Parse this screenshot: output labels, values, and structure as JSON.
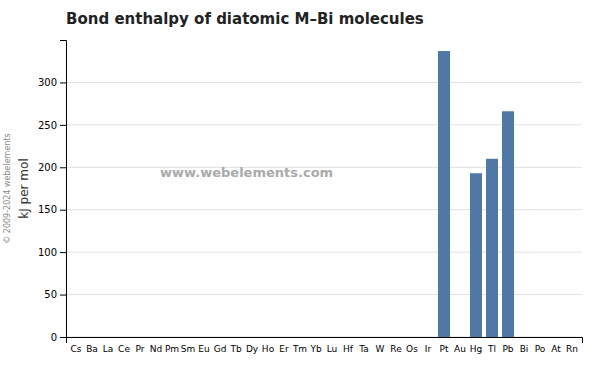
{
  "chart_data": {
    "type": "bar",
    "title": "Bond enthalpy of diatomic M–Bi molecules",
    "y_label": "kJ per mol",
    "categories": [
      "Cs",
      "Ba",
      "La",
      "Ce",
      "Pr",
      "Nd",
      "Pm",
      "Sm",
      "Eu",
      "Gd",
      "Tb",
      "Dy",
      "Ho",
      "Er",
      "Tm",
      "Yb",
      "Lu",
      "Hf",
      "Ta",
      "W",
      "Re",
      "Os",
      "Ir",
      "Pt",
      "Au",
      "Hg",
      "Tl",
      "Pb",
      "Bi",
      "Po",
      "At",
      "Rn"
    ],
    "values": [
      0,
      0,
      0,
      0,
      0,
      0,
      0,
      0,
      0,
      0,
      0,
      0,
      0,
      0,
      0,
      0,
      0,
      0,
      0,
      0,
      0,
      0,
      0,
      337,
      0,
      193,
      210,
      266,
      0,
      0,
      0,
      0
    ],
    "ylim": [
      0,
      350
    ],
    "yticks": [
      0,
      50,
      100,
      150,
      200,
      250,
      300
    ],
    "grid": true,
    "annotations": [
      "www.webelements.com",
      "© 2009-2024 webelements"
    ]
  }
}
